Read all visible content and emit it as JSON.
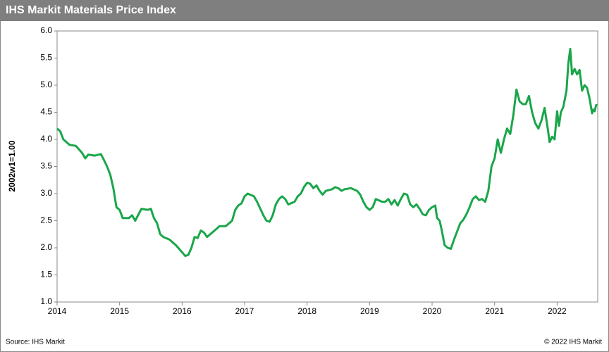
{
  "chart_data": {
    "type": "line",
    "title": "IHS Markit Materials Price Index",
    "y_label": "2002w1=1.00",
    "source": "Source:  IHS Markit",
    "copyright": "© 2022  IHS Markit",
    "xlim": [
      2014,
      2022.65
    ],
    "xticks": [
      2014,
      2015,
      2016,
      2017,
      2018,
      2019,
      2020,
      2021,
      2022
    ],
    "ylim": [
      1,
      6
    ],
    "yticks": [
      {
        "value": 1,
        "label": "1.0"
      },
      {
        "value": 1.5,
        "label": "1.5"
      },
      {
        "value": 2,
        "label": "2.0"
      },
      {
        "value": 2.5,
        "label": "2.5"
      },
      {
        "value": 3,
        "label": "3.0"
      },
      {
        "value": 3.5,
        "label": "3.5"
      },
      {
        "value": 4,
        "label": "4.0"
      },
      {
        "value": 4.5,
        "label": "4.5"
      },
      {
        "value": 5,
        "label": "5.0"
      },
      {
        "value": 5.5,
        "label": "5.5"
      },
      {
        "value": 6,
        "label": "6.0"
      }
    ],
    "grid": false,
    "color": "#1aa64a",
    "x": [
      2014.0,
      2014.05,
      2014.1,
      2014.2,
      2014.3,
      2014.4,
      2014.45,
      2014.5,
      2014.6,
      2014.7,
      2014.75,
      2014.8,
      2014.85,
      2014.9,
      2014.95,
      2015.0,
      2015.05,
      2015.15,
      2015.2,
      2015.25,
      2015.35,
      2015.45,
      2015.5,
      2015.55,
      2015.6,
      2015.65,
      2015.7,
      2015.8,
      2015.9,
      2016.0,
      2016.05,
      2016.1,
      2016.15,
      2016.2,
      2016.25,
      2016.3,
      2016.35,
      2016.4,
      2016.45,
      2016.55,
      2016.6,
      2016.7,
      2016.75,
      2016.8,
      2016.85,
      2016.9,
      2016.95,
      2017.0,
      2017.05,
      2017.15,
      2017.2,
      2017.3,
      2017.35,
      2017.4,
      2017.45,
      2017.5,
      2017.55,
      2017.6,
      2017.65,
      2017.7,
      2017.8,
      2017.85,
      2017.9,
      2017.95,
      2018.0,
      2018.05,
      2018.1,
      2018.15,
      2018.2,
      2018.25,
      2018.3,
      2018.4,
      2018.45,
      2018.5,
      2018.55,
      2018.6,
      2018.7,
      2018.8,
      2018.85,
      2018.9,
      2018.95,
      2019.0,
      2019.05,
      2019.1,
      2019.2,
      2019.25,
      2019.3,
      2019.35,
      2019.4,
      2019.45,
      2019.5,
      2019.55,
      2019.6,
      2019.65,
      2019.7,
      2019.75,
      2019.8,
      2019.85,
      2019.9,
      2019.95,
      2020.0,
      2020.05,
      2020.08,
      2020.12,
      2020.15,
      2020.2,
      2020.25,
      2020.3,
      2020.35,
      2020.4,
      2020.45,
      2020.5,
      2020.55,
      2020.6,
      2020.65,
      2020.7,
      2020.75,
      2020.8,
      2020.85,
      2020.9,
      2020.95,
      2021.0,
      2021.05,
      2021.1,
      2021.15,
      2021.2,
      2021.25,
      2021.3,
      2021.35,
      2021.4,
      2021.45,
      2021.5,
      2021.55,
      2021.6,
      2021.65,
      2021.7,
      2021.75,
      2021.8,
      2021.85,
      2021.88,
      2021.92,
      2021.96,
      2022.0,
      2022.03,
      2022.06,
      2022.1,
      2022.15,
      2022.18,
      2022.21,
      2022.24,
      2022.28,
      2022.32,
      2022.36,
      2022.4,
      2022.44,
      2022.48,
      2022.52,
      2022.56,
      2022.58,
      2022.6,
      2022.63
    ],
    "values": [
      4.2,
      4.15,
      4.0,
      3.9,
      3.88,
      3.75,
      3.65,
      3.72,
      3.7,
      3.73,
      3.62,
      3.5,
      3.35,
      3.1,
      2.75,
      2.7,
      2.55,
      2.55,
      2.6,
      2.5,
      2.72,
      2.7,
      2.72,
      2.55,
      2.45,
      2.25,
      2.2,
      2.15,
      2.05,
      1.92,
      1.85,
      1.87,
      2.0,
      2.2,
      2.18,
      2.32,
      2.28,
      2.2,
      2.25,
      2.35,
      2.4,
      2.4,
      2.45,
      2.5,
      2.7,
      2.78,
      2.82,
      2.95,
      3.0,
      2.95,
      2.85,
      2.6,
      2.5,
      2.48,
      2.6,
      2.8,
      2.9,
      2.95,
      2.9,
      2.8,
      2.85,
      2.95,
      3.0,
      3.12,
      3.2,
      3.18,
      3.1,
      3.15,
      3.05,
      2.98,
      3.05,
      3.08,
      3.12,
      3.1,
      3.05,
      3.08,
      3.1,
      3.05,
      2.98,
      2.85,
      2.75,
      2.7,
      2.75,
      2.9,
      2.85,
      2.85,
      2.9,
      2.8,
      2.88,
      2.78,
      2.9,
      3.0,
      2.98,
      2.8,
      2.75,
      2.8,
      2.72,
      2.62,
      2.6,
      2.7,
      2.75,
      2.78,
      2.55,
      2.5,
      2.35,
      2.05,
      2.0,
      1.98,
      2.15,
      2.3,
      2.45,
      2.52,
      2.62,
      2.75,
      2.9,
      2.95,
      2.88,
      2.9,
      2.85,
      3.05,
      3.5,
      3.65,
      4.0,
      3.75,
      4.0,
      4.2,
      4.1,
      4.45,
      4.92,
      4.7,
      4.65,
      4.65,
      4.8,
      4.5,
      4.3,
      4.2,
      4.35,
      4.58,
      4.2,
      3.95,
      4.05,
      4.0,
      4.52,
      4.25,
      4.5,
      4.6,
      4.9,
      5.4,
      5.67,
      5.2,
      5.3,
      5.2,
      5.28,
      4.9,
      5.0,
      4.95,
      4.75,
      4.48,
      4.55,
      4.52,
      4.65
    ]
  }
}
